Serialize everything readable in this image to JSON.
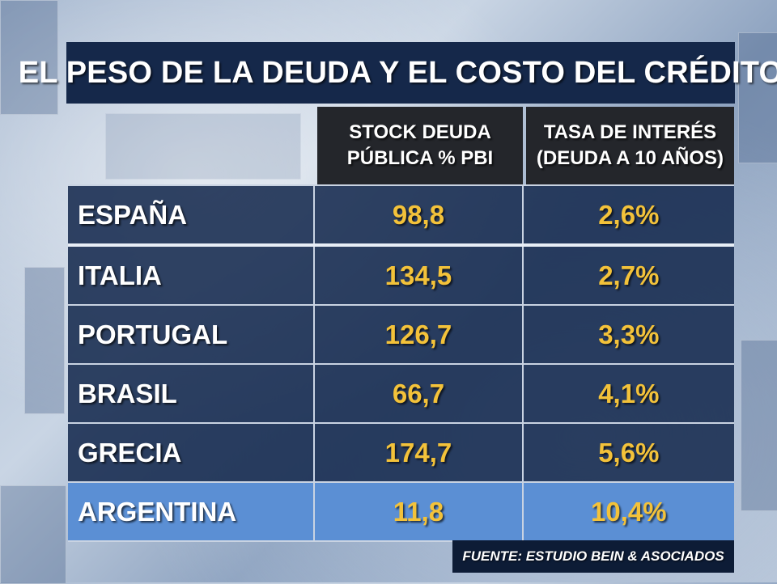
{
  "title": "EL PESO DE LA DEUDA Y EL COSTO DEL CRÉDITO",
  "columns": [
    "STOCK DEUDA\nPÚBLICA % PBI",
    "TASA DE INTERÉS\n(DEUDA A 10 AÑOS)"
  ],
  "rows": [
    {
      "country": "ESPAÑA",
      "debt": "98,8",
      "rate": "2,6%"
    },
    {
      "country": "ITALIA",
      "debt": "134,5",
      "rate": "2,7%"
    },
    {
      "country": "PORTUGAL",
      "debt": "126,7",
      "rate": "3,3%"
    },
    {
      "country": "BRASIL",
      "debt": "66,7",
      "rate": "4,1%"
    },
    {
      "country": "GRECIA",
      "debt": "174,7",
      "rate": "5,6%"
    },
    {
      "country": "ARGENTINA",
      "debt": "11,8",
      "rate": "10,4%"
    }
  ],
  "source": "FUENTE: ESTUDIO BEIN & ASOCIADOS",
  "colors": {
    "title_bg": "#15284a",
    "header_bg": "#24262b",
    "row_bg": "#162a4e",
    "highlight_bg": "#5b8fd4",
    "value_text": "#f3c23a",
    "label_text": "#ffffff"
  }
}
